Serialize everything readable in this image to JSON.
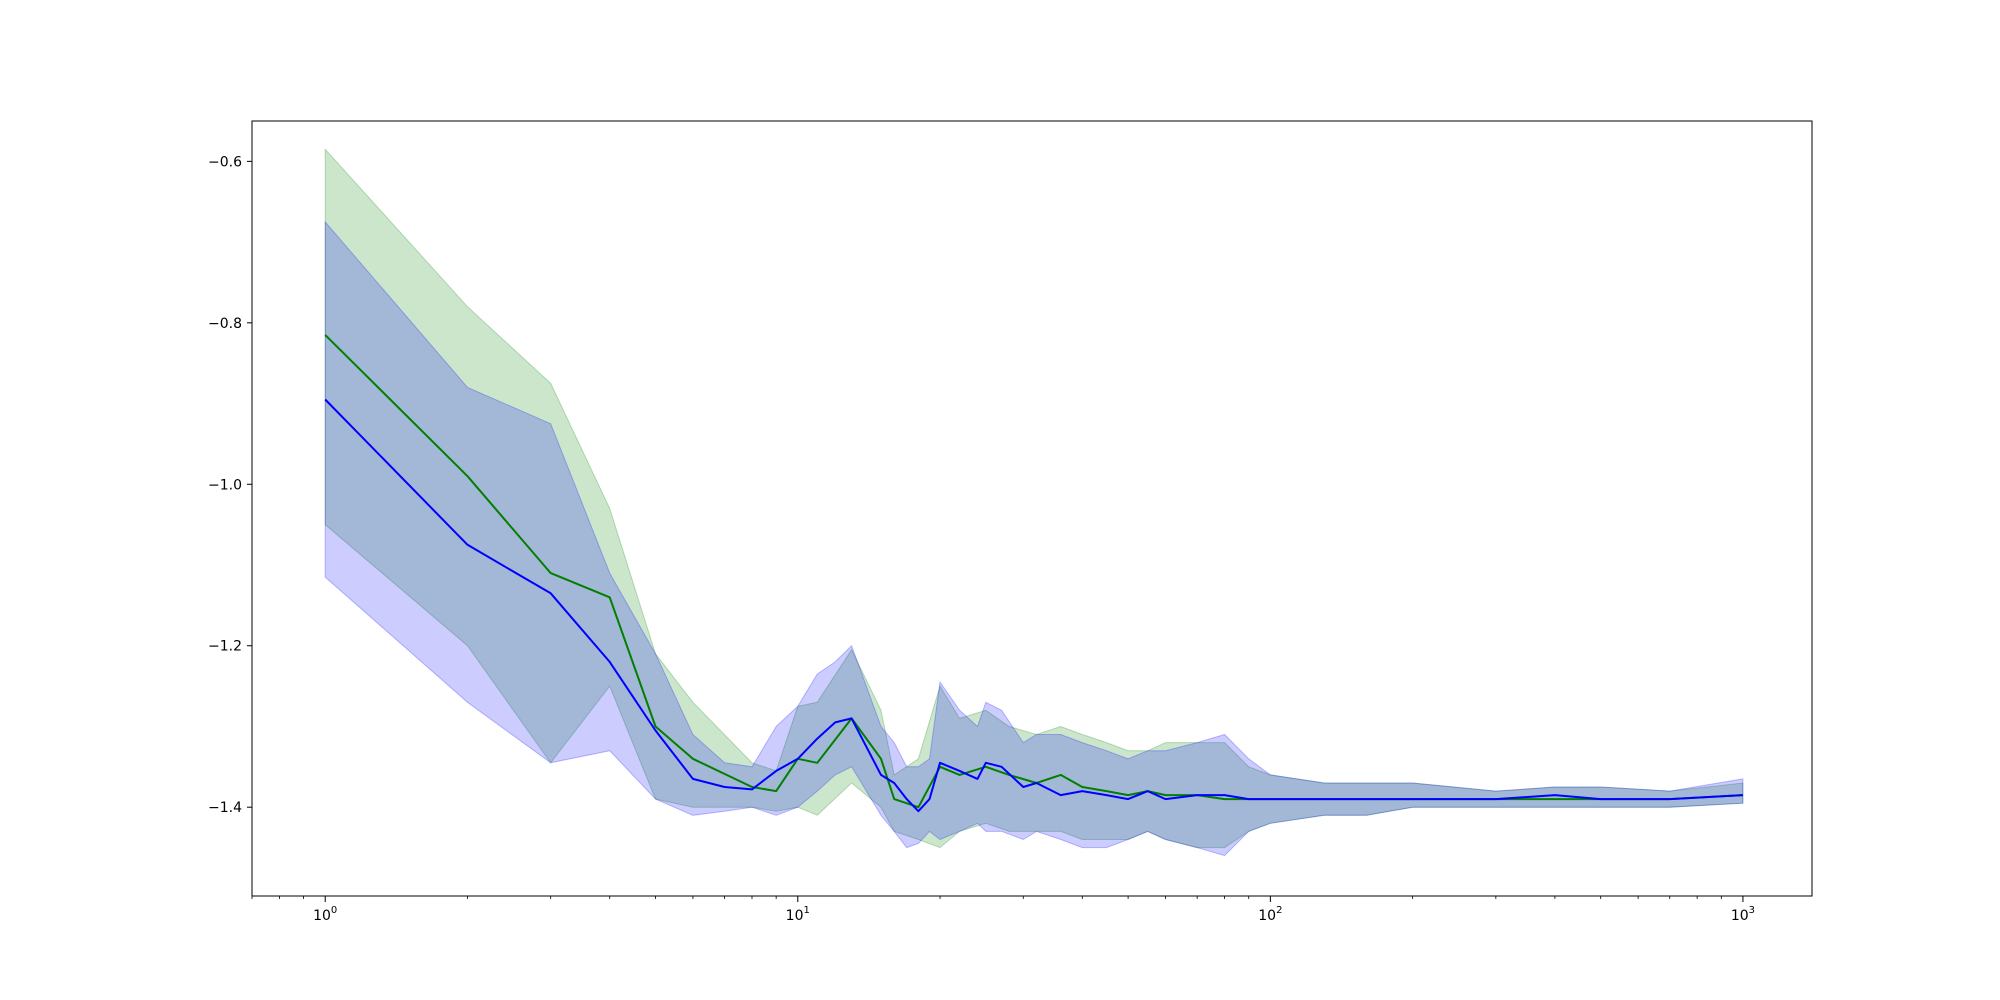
{
  "chart_data": {
    "type": "line",
    "title": "",
    "xlabel": "",
    "ylabel": "",
    "x_scale": "log",
    "xlim": [
      0.7,
      1400
    ],
    "ylim": [
      -1.51,
      -0.55
    ],
    "x_ticks": [
      {
        "value": 1,
        "base": "10",
        "exp": "0"
      },
      {
        "value": 10,
        "base": "10",
        "exp": "1"
      },
      {
        "value": 100,
        "base": "10",
        "exp": "2"
      },
      {
        "value": 1000,
        "base": "10",
        "exp": "3"
      }
    ],
    "y_ticks": [
      {
        "value": -0.6,
        "label": "−0.6"
      },
      {
        "value": -0.8,
        "label": "−0.8"
      },
      {
        "value": -1.0,
        "label": "−1.0"
      },
      {
        "value": -1.2,
        "label": "−1.2"
      },
      {
        "value": -1.4,
        "label": "−1.4"
      }
    ],
    "grid": false,
    "series": [
      {
        "color": "#007f00",
        "band_color": "#008000",
        "band_opacity": 0.2,
        "x": [
          1,
          2,
          3,
          4,
          5,
          6,
          8,
          9,
          10,
          11,
          13,
          15,
          16,
          18,
          20,
          22,
          25,
          28,
          32,
          36,
          40,
          45,
          50,
          55,
          60,
          70,
          80,
          90,
          100,
          130,
          160,
          200,
          300,
          400,
          500,
          700,
          1000
        ],
        "y": [
          -0.815,
          -0.99,
          -1.11,
          -1.14,
          -1.3,
          -1.34,
          -1.375,
          -1.38,
          -1.34,
          -1.345,
          -1.29,
          -1.34,
          -1.39,
          -1.4,
          -1.35,
          -1.36,
          -1.35,
          -1.36,
          -1.37,
          -1.36,
          -1.375,
          -1.38,
          -1.385,
          -1.38,
          -1.385,
          -1.385,
          -1.39,
          -1.39,
          -1.39,
          -1.39,
          -1.39,
          -1.39,
          -1.39,
          -1.39,
          -1.39,
          -1.39,
          -1.385
        ],
        "lower": [
          -1.05,
          -1.2,
          -1.345,
          -1.25,
          -1.39,
          -1.4,
          -1.4,
          -1.405,
          -1.4,
          -1.41,
          -1.37,
          -1.4,
          -1.43,
          -1.44,
          -1.45,
          -1.43,
          -1.42,
          -1.43,
          -1.43,
          -1.43,
          -1.44,
          -1.44,
          -1.44,
          -1.43,
          -1.44,
          -1.45,
          -1.45,
          -1.43,
          -1.42,
          -1.41,
          -1.41,
          -1.4,
          -1.4,
          -1.4,
          -1.4,
          -1.4,
          -1.395
        ],
        "upper": [
          -0.585,
          -0.78,
          -0.875,
          -1.03,
          -1.21,
          -1.27,
          -1.345,
          -1.355,
          -1.275,
          -1.27,
          -1.205,
          -1.28,
          -1.36,
          -1.34,
          -1.25,
          -1.29,
          -1.28,
          -1.3,
          -1.31,
          -1.3,
          -1.31,
          -1.32,
          -1.33,
          -1.33,
          -1.32,
          -1.32,
          -1.32,
          -1.35,
          -1.36,
          -1.37,
          -1.37,
          -1.37,
          -1.38,
          -1.375,
          -1.375,
          -1.38,
          -1.37
        ]
      },
      {
        "color": "#0000ff",
        "band_color": "#0000ff",
        "band_opacity": 0.2,
        "x": [
          1,
          2,
          3,
          4,
          5,
          6,
          7,
          8,
          9,
          10,
          11,
          12,
          13,
          15,
          16,
          17,
          18,
          19,
          20,
          22,
          24,
          25,
          27,
          30,
          32,
          36,
          40,
          45,
          50,
          55,
          60,
          70,
          80,
          90,
          100,
          130,
          160,
          200,
          300,
          400,
          500,
          700,
          1000
        ],
        "y": [
          -0.895,
          -1.075,
          -1.135,
          -1.22,
          -1.305,
          -1.365,
          -1.375,
          -1.378,
          -1.355,
          -1.34,
          -1.315,
          -1.295,
          -1.29,
          -1.36,
          -1.37,
          -1.39,
          -1.405,
          -1.39,
          -1.345,
          -1.355,
          -1.365,
          -1.345,
          -1.35,
          -1.375,
          -1.37,
          -1.385,
          -1.38,
          -1.385,
          -1.39,
          -1.38,
          -1.39,
          -1.385,
          -1.385,
          -1.39,
          -1.39,
          -1.39,
          -1.39,
          -1.39,
          -1.39,
          -1.385,
          -1.39,
          -1.39,
          -1.385
        ],
        "lower": [
          -1.115,
          -1.27,
          -1.345,
          -1.33,
          -1.39,
          -1.41,
          -1.405,
          -1.4,
          -1.41,
          -1.4,
          -1.38,
          -1.36,
          -1.35,
          -1.41,
          -1.43,
          -1.45,
          -1.445,
          -1.43,
          -1.44,
          -1.43,
          -1.42,
          -1.43,
          -1.43,
          -1.44,
          -1.43,
          -1.44,
          -1.45,
          -1.45,
          -1.44,
          -1.43,
          -1.44,
          -1.45,
          -1.46,
          -1.43,
          -1.42,
          -1.41,
          -1.41,
          -1.4,
          -1.4,
          -1.4,
          -1.4,
          -1.4,
          -1.395
        ],
        "upper": [
          -0.675,
          -0.88,
          -0.925,
          -1.11,
          -1.21,
          -1.31,
          -1.345,
          -1.35,
          -1.3,
          -1.275,
          -1.235,
          -1.22,
          -1.2,
          -1.3,
          -1.32,
          -1.35,
          -1.35,
          -1.34,
          -1.245,
          -1.28,
          -1.3,
          -1.27,
          -1.28,
          -1.32,
          -1.31,
          -1.31,
          -1.32,
          -1.33,
          -1.34,
          -1.33,
          -1.33,
          -1.32,
          -1.31,
          -1.34,
          -1.36,
          -1.37,
          -1.37,
          -1.37,
          -1.38,
          -1.375,
          -1.375,
          -1.38,
          -1.365
        ]
      }
    ]
  }
}
